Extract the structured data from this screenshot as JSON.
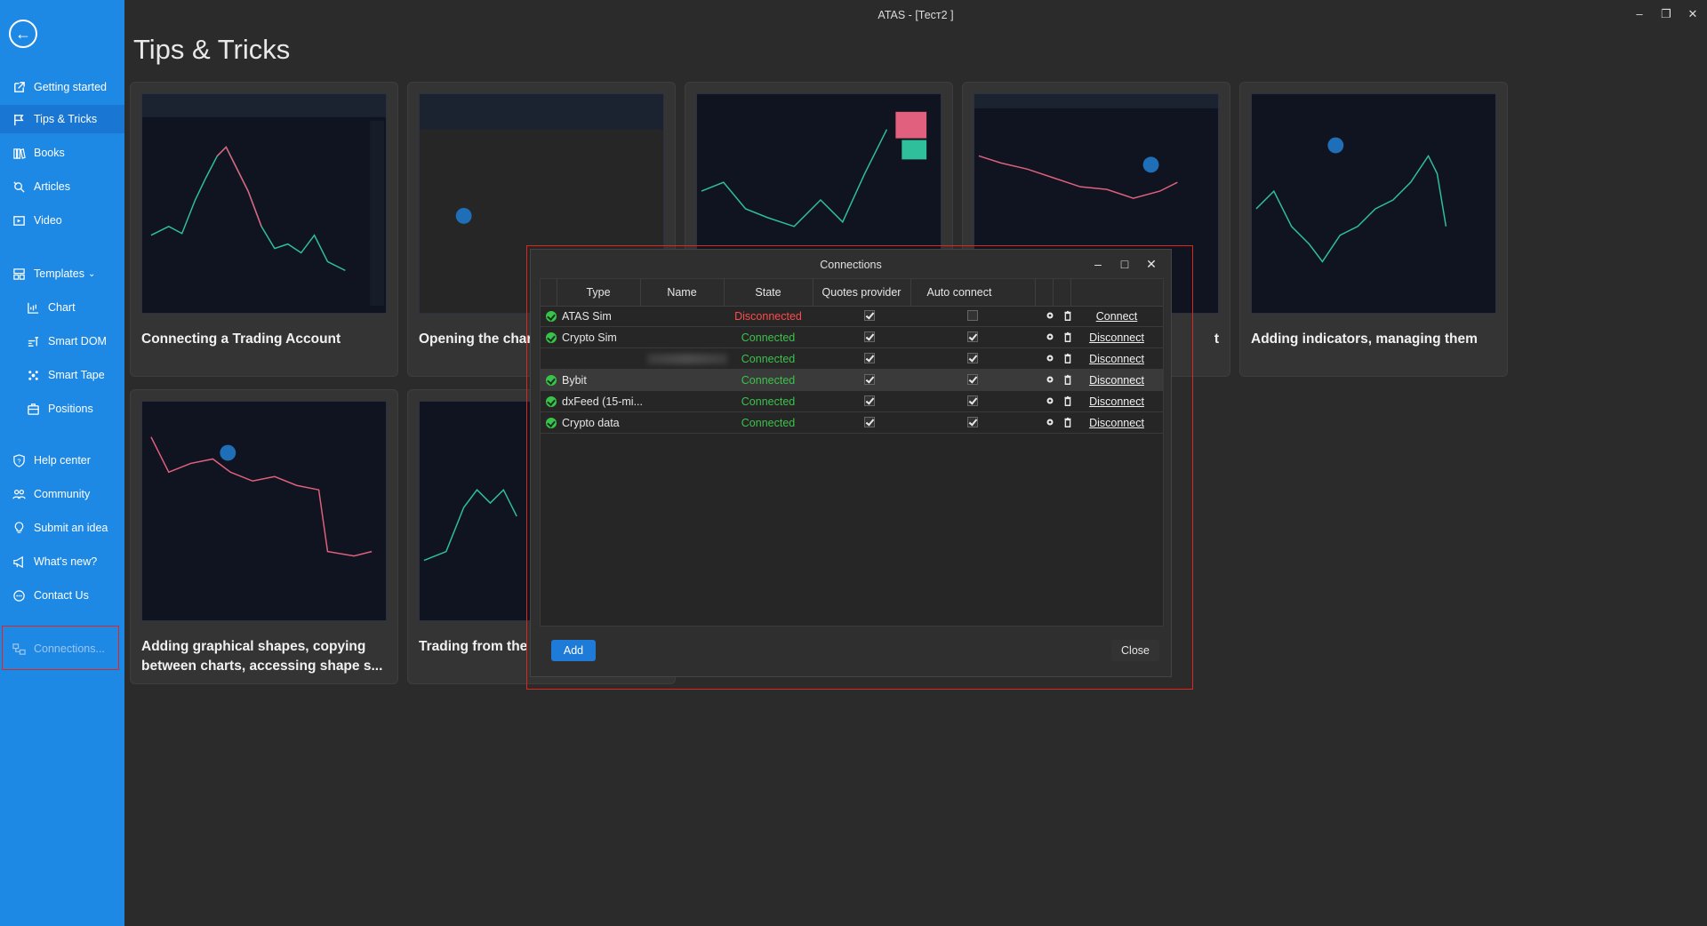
{
  "window": {
    "title": "ATAS - [Тест2 ]"
  },
  "page": {
    "title": "Tips & Tricks"
  },
  "sidebar": {
    "items": [
      {
        "label": "Getting started",
        "icon": "external-link-icon"
      },
      {
        "label": "Tips & Tricks",
        "icon": "flag-icon",
        "active": true
      },
      {
        "label": "Books",
        "icon": "books-icon"
      },
      {
        "label": "Articles",
        "icon": "articles-icon"
      },
      {
        "label": "Video",
        "icon": "video-icon"
      },
      {
        "label": "Templates",
        "icon": "templates-icon",
        "expanded": true
      },
      {
        "label": "Chart",
        "icon": "chart-icon",
        "sub": true
      },
      {
        "label": "Smart DOM",
        "icon": "smart-dom-icon",
        "sub": true
      },
      {
        "label": "Smart Tape",
        "icon": "smart-tape-icon",
        "sub": true
      },
      {
        "label": "Positions",
        "icon": "positions-icon",
        "sub": true
      },
      {
        "label": "Help center",
        "icon": "help-icon"
      },
      {
        "label": "Community",
        "icon": "community-icon"
      },
      {
        "label": "Submit an idea",
        "icon": "lightbulb-icon"
      },
      {
        "label": "What's new?",
        "icon": "megaphone-icon"
      },
      {
        "label": "Contact Us",
        "icon": "chat-icon"
      },
      {
        "label": "Connections...",
        "icon": "connections-icon",
        "disabled": true
      }
    ]
  },
  "cards": [
    {
      "title": "Connecting a Trading Account"
    },
    {
      "title": "Opening the char"
    },
    {
      "title": ""
    },
    {
      "title": "t"
    },
    {
      "title": "Adding indicators, managing them"
    },
    {
      "title": "Adding graphical shapes, copying between charts, accessing shape s..."
    },
    {
      "title": "Trading from the Trader Chart, Buy"
    }
  ],
  "dialog": {
    "title": "Connections",
    "columns": [
      "Type",
      "Name",
      "State",
      "Quotes provider",
      "Auto connect"
    ],
    "rows": [
      {
        "type": "ATAS Sim",
        "name": "",
        "state": "Disconnected",
        "quotes": true,
        "auto": false,
        "action": "Connect"
      },
      {
        "type": "Crypto Sim",
        "name": "",
        "state": "Connected",
        "quotes": true,
        "auto": true,
        "action": "Disconnect"
      },
      {
        "type": "",
        "name": "",
        "state": "Connected",
        "quotes": true,
        "auto": true,
        "action": "Disconnect"
      },
      {
        "type": "Bybit",
        "name": "",
        "state": "Connected",
        "quotes": true,
        "auto": true,
        "action": "Disconnect"
      },
      {
        "type": "dxFeed (15-mi...",
        "name": "",
        "state": "Connected",
        "quotes": true,
        "auto": true,
        "action": "Disconnect"
      },
      {
        "type": "Crypto data",
        "name": "",
        "state": "Connected",
        "quotes": true,
        "auto": true,
        "action": "Disconnect"
      }
    ],
    "add_label": "Add",
    "close_label": "Close"
  },
  "colors": {
    "sidebar": "#1e88e5",
    "accent": "#1e7bd8",
    "connected": "#3bc24a",
    "disconnected": "#ff4a4a",
    "highlight": "#e0261c"
  }
}
